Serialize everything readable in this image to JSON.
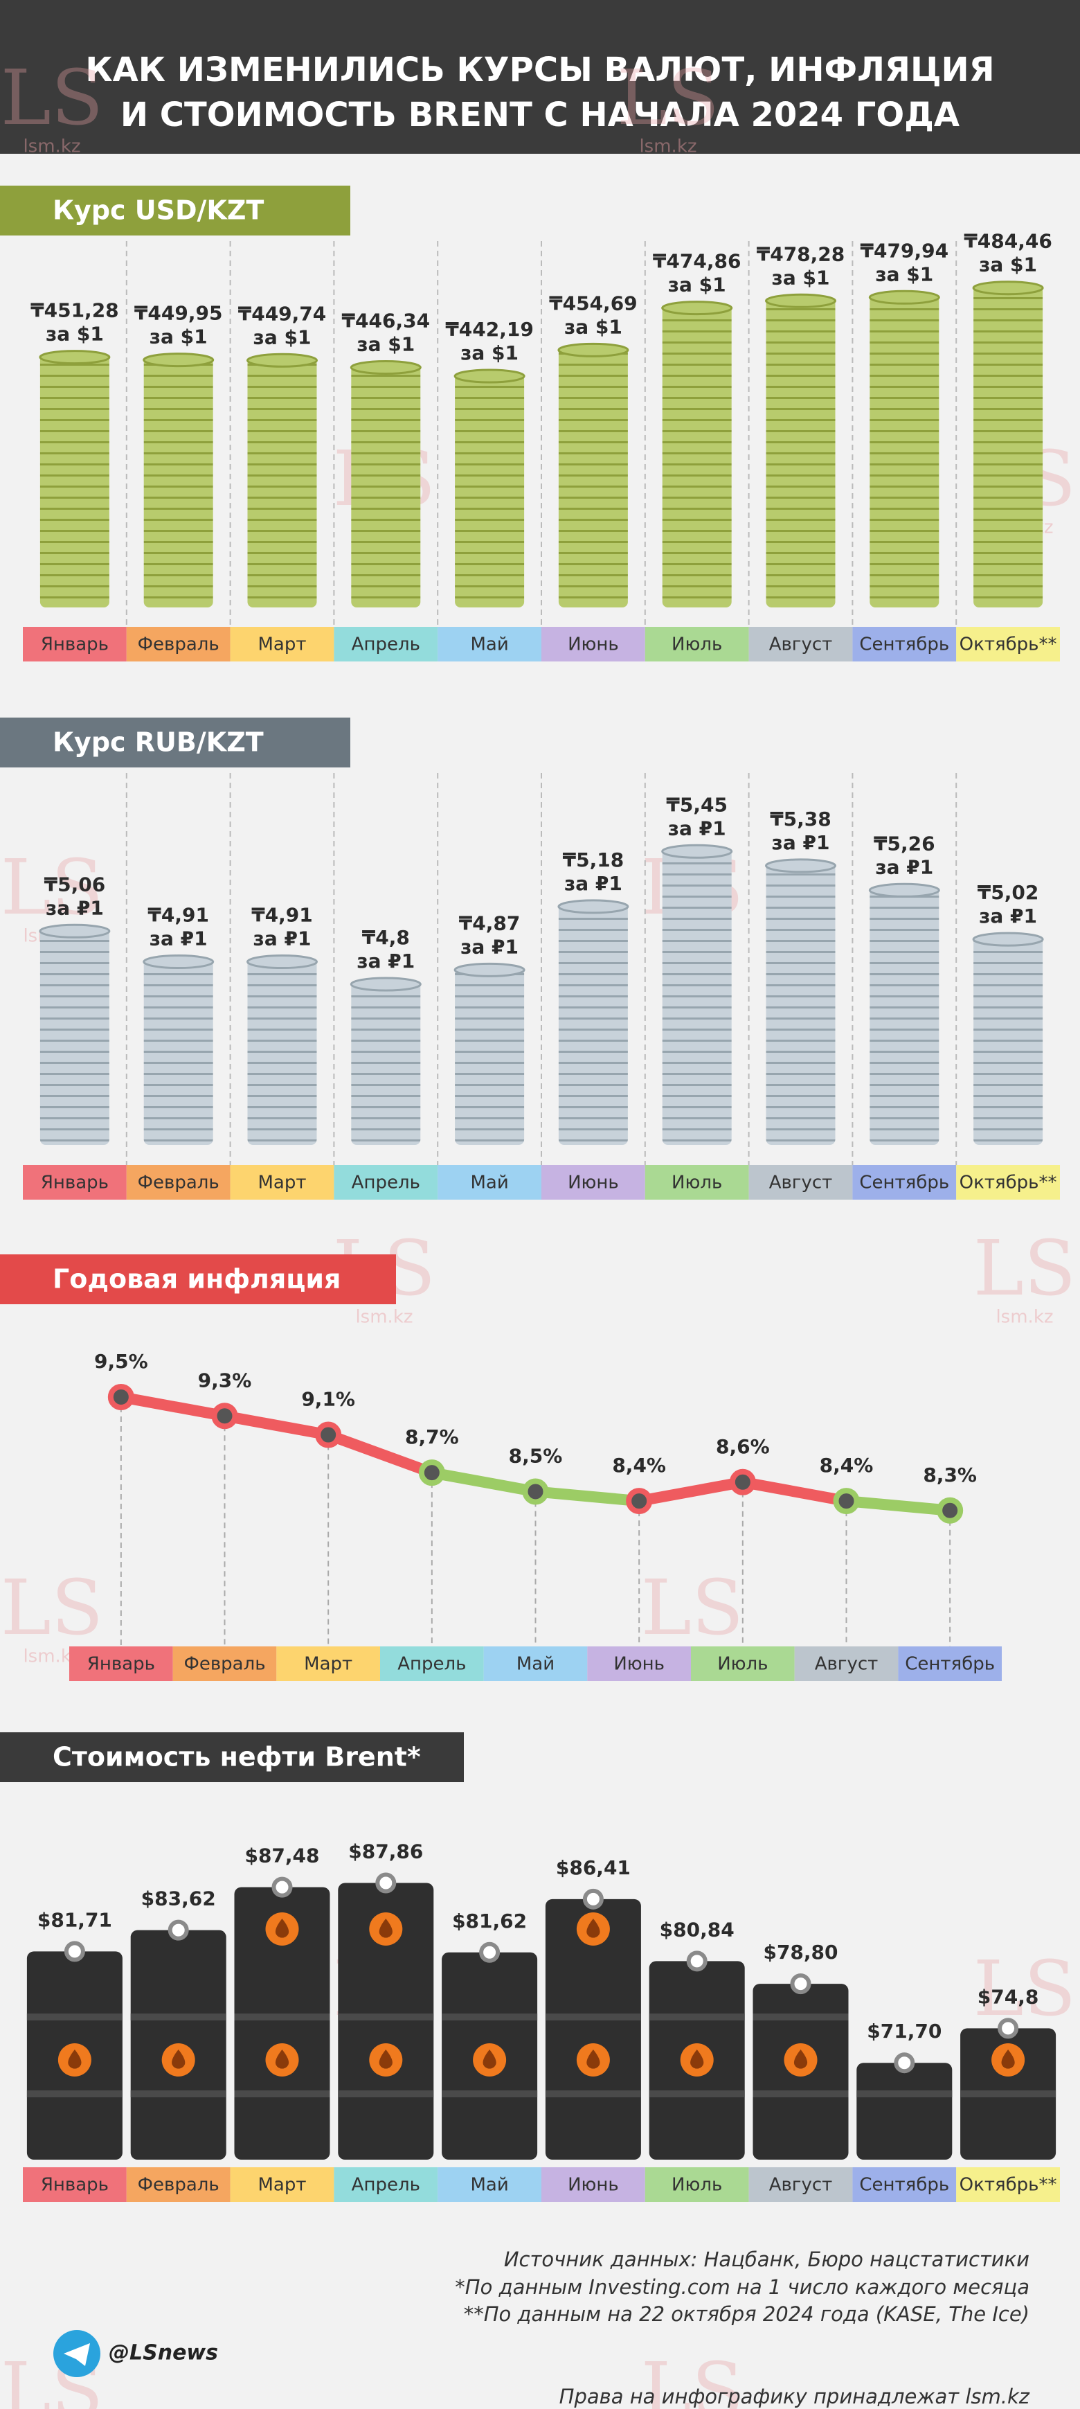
{
  "title": [
    "КАК ИЗМЕНИЛИСЬ КУРСЫ ВАЛЮТ, ИНФЛЯЦИЯ",
    "И СТОИМОСТЬ BRENT С НАЧАЛА 2024 ГОДА"
  ],
  "watermark": {
    "logo": "LS",
    "site": "lsm.kz"
  },
  "chart_data": [
    {
      "type": "bar",
      "style": "coins",
      "title": "Курс USD/KZT",
      "header_color": "#8ea03c",
      "color": "#b8cb6d",
      "stripe_color": "#8ea03c",
      "categories": [
        "Январь",
        "Февраль",
        "Март",
        "Апрель",
        "Май",
        "Июнь",
        "Июль",
        "Август",
        "Сентябрь",
        "Октябрь**"
      ],
      "category_colors": [
        "#f0727a",
        "#f5a660",
        "#fdd46e",
        "#93dcdc",
        "#9dd2f2",
        "#c6b3e2",
        "#aad993",
        "#bcc5cd",
        "#9db0ea",
        "#f6f08c"
      ],
      "values": [
        451.28,
        449.95,
        449.74,
        446.34,
        442.19,
        454.69,
        474.86,
        478.28,
        479.94,
        484.46
      ],
      "value_labels": [
        "₸451,28",
        "₸449,95",
        "₸449,74",
        "₸446,34",
        "₸442,19",
        "₸454,69",
        "₸474,86",
        "₸478,28",
        "₸479,94",
        "₸484,46"
      ],
      "unit_label": "за $1",
      "ylim": [
        330,
        490
      ]
    },
    {
      "type": "bar",
      "style": "coins",
      "title": "Курс RUB/KZT",
      "header_color": "#6b7780",
      "color": "#c8d2da",
      "stripe_color": "#97a5ae",
      "categories": [
        "Январь",
        "Февраль",
        "Март",
        "Апрель",
        "Май",
        "Июнь",
        "Июль",
        "Август",
        "Сентябрь",
        "Октябрь**"
      ],
      "category_colors": [
        "#f0727a",
        "#f5a660",
        "#fdd46e",
        "#93dcdc",
        "#9dd2f2",
        "#c6b3e2",
        "#aad993",
        "#bcc5cd",
        "#9db0ea",
        "#f6f08c"
      ],
      "values": [
        5.06,
        4.91,
        4.91,
        4.8,
        4.87,
        5.18,
        5.45,
        5.38,
        5.26,
        5.02
      ],
      "value_labels": [
        "₸5,06",
        "₸4,91",
        "₸4,91",
        "₸4,8",
        "₸4,87",
        "₸5,18",
        "₸5,45",
        "₸5,38",
        "₸5,26",
        "₸5,02"
      ],
      "unit_label": "за ₽1",
      "ylim": [
        4.0,
        5.6
      ]
    },
    {
      "type": "line",
      "title": "Годовая инфляция",
      "header_color": "#e34a4a",
      "categories": [
        "Январь",
        "Февраль",
        "Март",
        "Апрель",
        "Май",
        "Июнь",
        "Июль",
        "Август",
        "Сентябрь"
      ],
      "category_colors": [
        "#f0727a",
        "#f5a660",
        "#fdd46e",
        "#93dcdc",
        "#9dd2f2",
        "#c6b3e2",
        "#aad993",
        "#bcc5cd",
        "#9db0ea"
      ],
      "values": [
        9.5,
        9.3,
        9.1,
        8.7,
        8.5,
        8.4,
        8.6,
        8.4,
        8.3
      ],
      "value_labels": [
        "9,5%",
        "9,3%",
        "9,1%",
        "8,7%",
        "8,5%",
        "8,4%",
        "8,6%",
        "8,4%",
        "8,3%"
      ],
      "point_colors": [
        "#ef5b5f",
        "#ef5b5f",
        "#ef5b5f",
        "#9ccc65",
        "#9ccc65",
        "#ef5b5f",
        "#ef5b5f",
        "#9ccc65",
        "#9ccc65"
      ],
      "ylim": [
        7.8,
        9.8
      ]
    },
    {
      "type": "bar",
      "style": "barrels",
      "title": "Стоимость нефти Brent*",
      "header_color": "#3a3a3a",
      "color": "#2f2f2f",
      "stripe_color": "#4a4a4a",
      "categories": [
        "Январь",
        "Февраль",
        "Март",
        "Апрель",
        "Май",
        "Июнь",
        "Июль",
        "Август",
        "Сентябрь",
        "Октябрь**"
      ],
      "category_colors": [
        "#f0727a",
        "#f5a660",
        "#fdd46e",
        "#93dcdc",
        "#9dd2f2",
        "#c6b3e2",
        "#aad993",
        "#bcc5cd",
        "#9db0ea",
        "#f6f08c"
      ],
      "values": [
        81.71,
        83.62,
        87.48,
        87.86,
        81.62,
        86.41,
        80.84,
        78.8,
        71.7,
        74.8
      ],
      "value_labels": [
        "$81,71",
        "$83,62",
        "$87,48",
        "$87,86",
        "$81,62",
        "$86,41",
        "$80,84",
        "$78,80",
        "$71,70",
        "$74,8"
      ],
      "ylim": [
        63,
        92
      ]
    }
  ],
  "footer": {
    "sources": [
      "Источник данных: Нацбанк, Бюро нацстатистики",
      "*По данным Investing.com на 1 число каждого месяца",
      "**По данным на 22 октября 2024 года (KASE, The Ice)"
    ],
    "handle": "@LSnews",
    "rights": "Права на инфографику принадлежат lsm.kz"
  }
}
